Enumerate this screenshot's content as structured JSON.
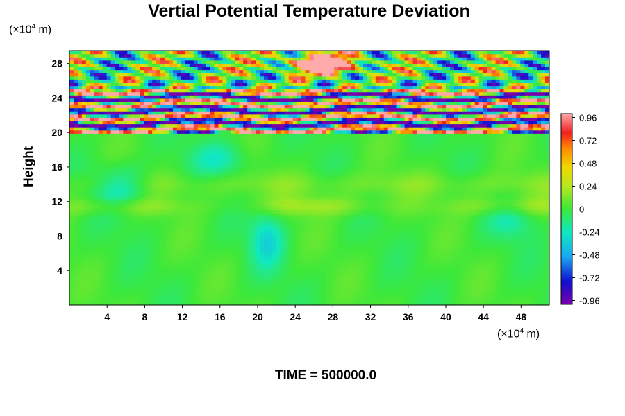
{
  "chart_data": {
    "type": "heatmap",
    "title": "Vertial Potential Temperature Deviation",
    "ylabel": "Height",
    "y_unit": {
      "prefix": "(×10",
      "exp": "4",
      "suffix": " m)"
    },
    "x_unit": {
      "prefix": "(×10",
      "exp": "4",
      "suffix": " m)"
    },
    "x_ticks": [
      "4",
      "8",
      "12",
      "16",
      "20",
      "24",
      "28",
      "32",
      "36",
      "40",
      "44",
      "48"
    ],
    "y_ticks": [
      "28",
      "24",
      "20",
      "16",
      "12",
      "8",
      "4"
    ],
    "xlim": [
      0,
      51
    ],
    "ylim": [
      0,
      29.5
    ],
    "colorbar": {
      "range": [
        -1.0,
        1.0
      ],
      "labels": [
        "0.96",
        "0.72",
        "0.48",
        "0.24",
        "0",
        "-0.24",
        "-0.48",
        "-0.72",
        "-0.96"
      ]
    },
    "regions": [
      {
        "y_range": [
          0,
          20
        ],
        "typical_value": 0.0,
        "description_values": [
          -0.2,
          0.1
        ]
      },
      {
        "y_range": [
          20,
          25
        ],
        "typical_value": 0.0,
        "description_values": [
          -1.0,
          1.0
        ]
      },
      {
        "y_range": [
          25,
          29.5
        ],
        "typical_value": 0.0,
        "description_values": [
          -1.0,
          1.0
        ]
      }
    ],
    "features": [
      {
        "x": 5.5,
        "y": 13.5,
        "value": -0.35
      },
      {
        "x": 21,
        "y": 8,
        "value": -0.45
      },
      {
        "x": 27,
        "y": 28,
        "value": 1.0
      },
      {
        "x": 46,
        "y": 10,
        "value": -0.3
      }
    ]
  },
  "footer": "TIME = 500000.0"
}
